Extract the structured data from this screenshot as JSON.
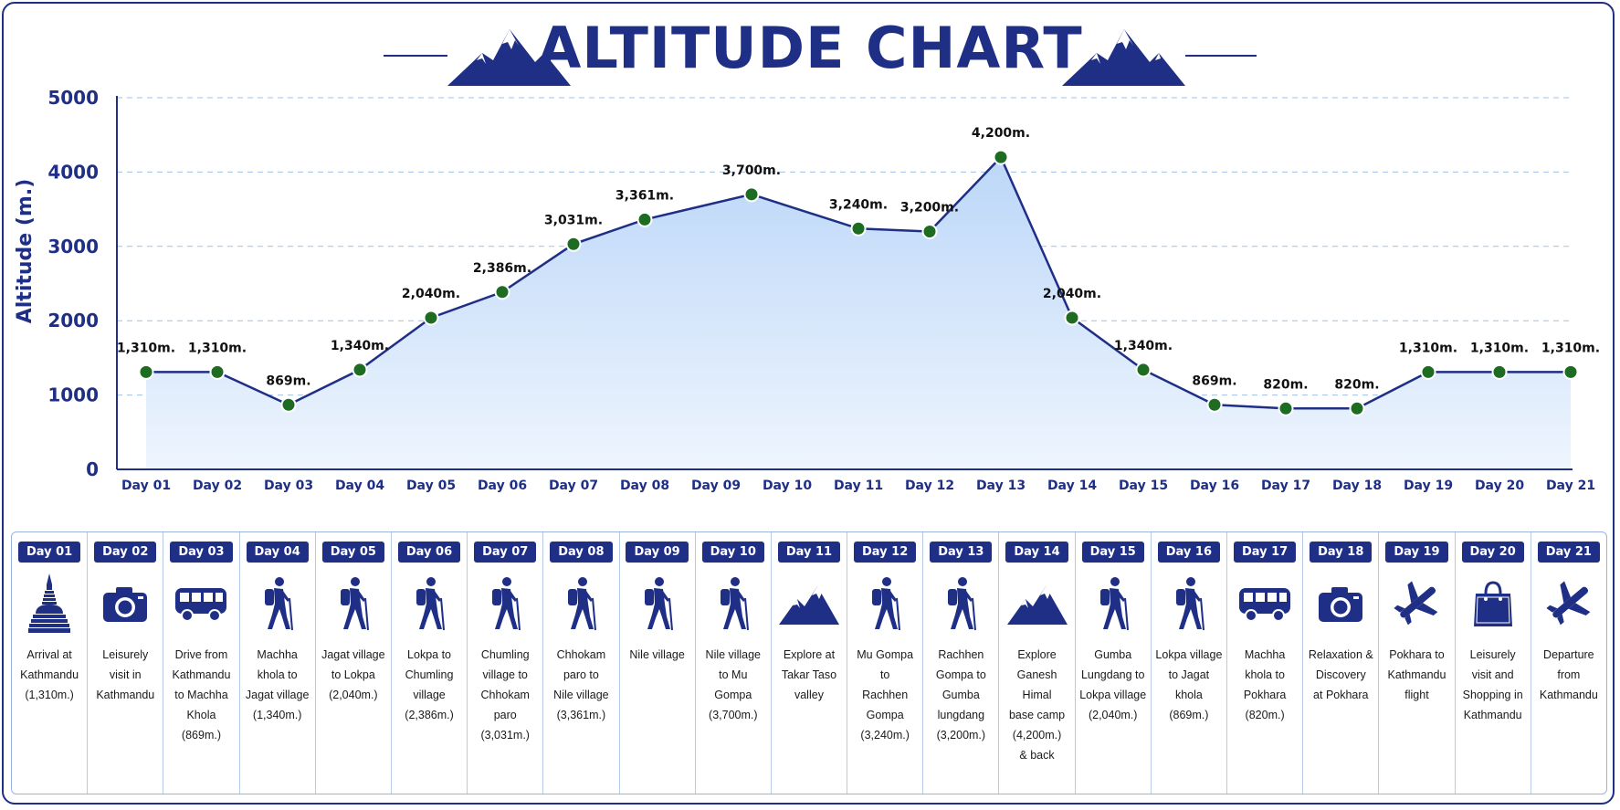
{
  "title": "ALTITUDE CHART",
  "colors": {
    "navy": "#1f2f86",
    "marker": "#1e6b22",
    "fill": "#cfe2fb",
    "grid": "#9fc0e6"
  },
  "chart_data": {
    "type": "area",
    "ylabel": "Altitude (m.)",
    "ylim": [
      0,
      5000
    ],
    "yticks": [
      "0",
      "1000",
      "2000",
      "3000",
      "4000",
      "5000"
    ],
    "grid": true,
    "categories": [
      "Day 01",
      "Day 02",
      "Day 03",
      "Day 04",
      "Day 05",
      "Day 06",
      "Day 07",
      "Day 08",
      "Day 09",
      "Day 10",
      "Day 11",
      "Day 12",
      "Day 13",
      "Day 14",
      "Day 15",
      "Day 16",
      "Day 17",
      "Day 18",
      "Day 19",
      "Day 20",
      "Day 21"
    ],
    "points": [
      {
        "x": 1,
        "y": 1310,
        "label": "1,310m."
      },
      {
        "x": 2,
        "y": 1310,
        "label": "1,310m."
      },
      {
        "x": 3,
        "y": 869,
        "label": "869m."
      },
      {
        "x": 4,
        "y": 1340,
        "label": "1,340m."
      },
      {
        "x": 5,
        "y": 2040,
        "label": "2,040m."
      },
      {
        "x": 6,
        "y": 2386,
        "label": "2,386m."
      },
      {
        "x": 7,
        "y": 3031,
        "label": "3,031m."
      },
      {
        "x": 8,
        "y": 3361,
        "label": "3,361m."
      },
      {
        "x": 9.5,
        "y": 3700,
        "label": "3,700m."
      },
      {
        "x": 11,
        "y": 3240,
        "label": "3,240m."
      },
      {
        "x": 12,
        "y": 3200,
        "label": "3,200m."
      },
      {
        "x": 13,
        "y": 4200,
        "label": "4,200m."
      },
      {
        "x": 14,
        "y": 2040,
        "label": "2,040m."
      },
      {
        "x": 15,
        "y": 1340,
        "label": "1,340m."
      },
      {
        "x": 16,
        "y": 869,
        "label": "869m."
      },
      {
        "x": 17,
        "y": 820,
        "label": "820m."
      },
      {
        "x": 18,
        "y": 820,
        "label": "820m."
      },
      {
        "x": 19,
        "y": 1310,
        "label": "1,310m."
      },
      {
        "x": 20,
        "y": 1310,
        "label": "1,310m."
      },
      {
        "x": 21,
        "y": 1310,
        "label": "1,310m."
      }
    ]
  },
  "itinerary": [
    {
      "day": "Day 01",
      "icon": "stupa-icon",
      "text": [
        "Arrival at",
        "Kathmandu",
        "(1,310m.)"
      ]
    },
    {
      "day": "Day 02",
      "icon": "camera-icon",
      "text": [
        "Leisurely",
        "visit in",
        "Kathmandu"
      ]
    },
    {
      "day": "Day 03",
      "icon": "bus-icon",
      "text": [
        "Drive from",
        "Kathmandu",
        "to Machha",
        "Khola",
        "(869m.)"
      ]
    },
    {
      "day": "Day 04",
      "icon": "hiker-icon",
      "text": [
        "Machha",
        "khola to",
        "Jagat village",
        "(1,340m.)"
      ]
    },
    {
      "day": "Day 05",
      "icon": "hiker-icon",
      "text": [
        "Jagat village",
        "to Lokpa",
        "(2,040m.)"
      ]
    },
    {
      "day": "Day 06",
      "icon": "hiker-icon",
      "text": [
        "Lokpa to",
        "Chumling",
        "village",
        "(2,386m.)"
      ]
    },
    {
      "day": "Day 07",
      "icon": "hiker-icon",
      "text": [
        "Chumling",
        "village to",
        "Chhokam",
        "paro",
        "(3,031m.)"
      ]
    },
    {
      "day": "Day 08",
      "icon": "hiker-icon",
      "text": [
        "Chhokam",
        "paro to",
        "Nile village",
        "(3,361m.)"
      ]
    },
    {
      "day": "Day 09",
      "icon": "hiker-icon",
      "text": [
        "Nile village"
      ]
    },
    {
      "day": "Day 10",
      "icon": "hiker-icon",
      "text": [
        "Nile village",
        "to Mu Gompa",
        "(3,700m.)"
      ]
    },
    {
      "day": "Day 11",
      "icon": "mountain-icon",
      "text": [
        "Explore at",
        "Takar Taso",
        "valley"
      ]
    },
    {
      "day": "Day 12",
      "icon": "hiker-icon",
      "text": [
        "Mu Gompa",
        "to",
        "Rachhen",
        "Gompa",
        "(3,240m.)"
      ]
    },
    {
      "day": "Day 13",
      "icon": "hiker-icon",
      "text": [
        "Rachhen",
        "Gompa to",
        "Gumba",
        "lungdang",
        "(3,200m.)"
      ]
    },
    {
      "day": "Day 14",
      "icon": "mountain-icon",
      "text": [
        "Explore",
        "Ganesh Himal",
        "base camp",
        "(4,200m.)",
        "& back"
      ]
    },
    {
      "day": "Day 15",
      "icon": "hiker-icon",
      "text": [
        "Gumba",
        "Lungdang to",
        "Lokpa village",
        "(2,040m.)"
      ]
    },
    {
      "day": "Day 16",
      "icon": "hiker-icon",
      "text": [
        "Lokpa village",
        "to Jagat",
        "khola",
        "(869m.)"
      ]
    },
    {
      "day": "Day 17",
      "icon": "bus-icon",
      "text": [
        "Machha",
        "khola to",
        "Pokhara",
        "(820m.)"
      ]
    },
    {
      "day": "Day 18",
      "icon": "camera-icon",
      "text": [
        "Relaxation &",
        "Discovery",
        "at Pokhara"
      ]
    },
    {
      "day": "Day 19",
      "icon": "plane-icon",
      "text": [
        "Pokhara to",
        "Kathmandu",
        "flight"
      ]
    },
    {
      "day": "Day 20",
      "icon": "shopping-bag-icon",
      "text": [
        "Leisurely",
        "visit and",
        "Shopping in",
        "Kathmandu"
      ]
    },
    {
      "day": "Day 21",
      "icon": "plane-icon",
      "text": [
        "Departure",
        "from",
        "Kathmandu"
      ]
    }
  ]
}
